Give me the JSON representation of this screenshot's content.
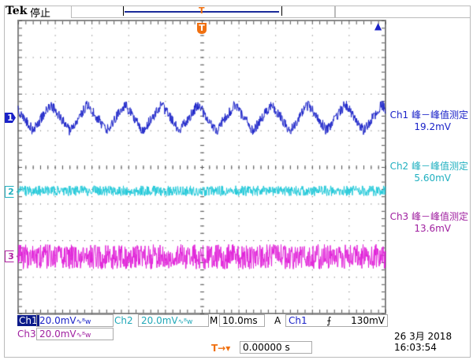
{
  "header": {
    "brand": "Tek",
    "status": "停止"
  },
  "trigger_marker": "T",
  "channels": [
    {
      "id": "1",
      "color": "#1a22c8",
      "marker_bg": "#1a22c8",
      "marker_fg": "#fff",
      "measure_label": "Ch1 峰－峰值测定",
      "measure_value": "19.2mV",
      "scale": "20.0mV",
      "wave": "triangle",
      "period_ms": 10,
      "pp_mV": 19.2,
      "offset_div": 1.35
    },
    {
      "id": "2",
      "color": "#20c8d8",
      "marker_bg": "#fff",
      "marker_fg": "#20b0c0",
      "measure_label": "Ch2 峰－峰值测定",
      "measure_value": "5.60mV",
      "scale": "20.0mV",
      "wave": "noise",
      "pp_mV": 5.6,
      "offset_div": -0.65
    },
    {
      "id": "3",
      "color": "#e020d8",
      "marker_bg": "#fff",
      "marker_fg": "#b020a0",
      "measure_label": "Ch3 峰－峰值测定",
      "measure_value": "13.6mV",
      "scale": "20.0mV",
      "wave": "noise",
      "pp_mV": 13.6,
      "offset_div": -2.45
    }
  ],
  "bottom": {
    "ch1_label": "Ch1",
    "ch1_scale": "20.0mV",
    "bw": "∿ᴮw",
    "ch2_label": "Ch2",
    "ch2_scale": "20.0mV",
    "ch3_label": "Ch3",
    "ch3_scale": "20.0mV",
    "timebase_label": "M",
    "timebase": "10.0ms",
    "trigger_mode": "A",
    "trigger_source": "Ch1",
    "trigger_slope": "⨍",
    "trigger_level": "130mV",
    "trigger_pos_icon": "T→▾",
    "trigger_pos": "0.00000 s",
    "date": "26 3月  2018",
    "time": "16:03:54"
  }
}
